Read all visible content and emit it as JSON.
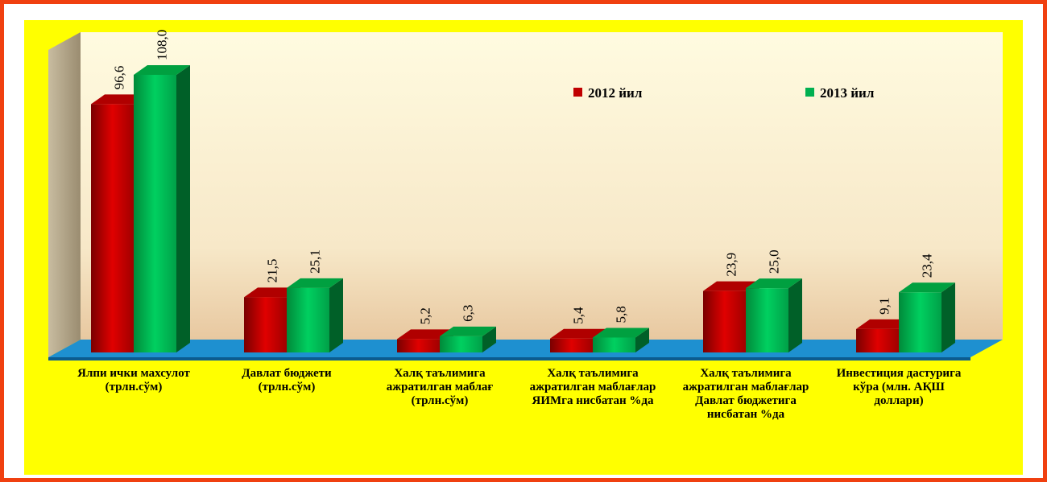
{
  "chart_data": {
    "type": "bar3d",
    "categories": [
      "Ялпи ички махсулот (трлн.сўм)",
      "Давлат бюджети (трлн.сўм)",
      "Халқ таълимига ажратилган маблағ (трлн.сўм)",
      "Халқ таълимига ажратилган маблағлар ЯИМга нисбатан %да",
      "Халқ таълимига ажратилган маблағлар Давлат бюджетига нисбатан %да",
      "Инвестиция дастурига кўра (млн. АҚШ доллари)"
    ],
    "series": [
      {
        "name": "2012 йил",
        "color": "#c00000",
        "values": [
          96.6,
          21.5,
          5.2,
          5.4,
          23.9,
          9.1
        ],
        "value_labels": [
          "96,6",
          "21,5",
          "5,2",
          "5,4",
          "23,9",
          "9,1"
        ]
      },
      {
        "name": "2013 йил",
        "color": "#00b050",
        "values": [
          108.0,
          25.1,
          6.3,
          5.8,
          25.0,
          23.4
        ],
        "value_labels": [
          "108,0",
          "25,1",
          "6,3",
          "5,8",
          "25,0",
          "23,4"
        ]
      }
    ]
  }
}
